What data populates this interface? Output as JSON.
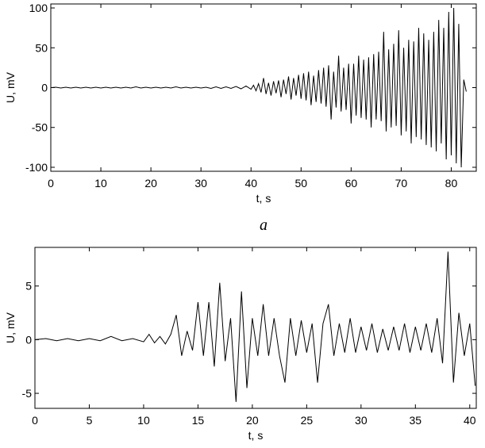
{
  "chart_data": [
    {
      "type": "line",
      "xlabel": "t, s",
      "ylabel": "U, mV",
      "caption": "a",
      "color": "#000000",
      "xlim": [
        0,
        85
      ],
      "xticks": [
        0,
        10,
        20,
        30,
        40,
        50,
        60,
        70,
        80
      ],
      "ylim": [
        -105,
        105
      ],
      "yticks": [
        -100,
        -50,
        0,
        50,
        100
      ],
      "x": [
        0,
        1,
        2,
        3,
        4,
        5,
        6,
        7,
        8,
        9,
        10,
        11,
        12,
        13,
        14,
        15,
        16,
        17,
        18,
        19,
        20,
        21,
        22,
        23,
        24,
        25,
        26,
        27,
        28,
        29,
        30,
        31,
        32,
        33,
        34,
        35,
        36,
        37,
        38,
        39,
        40,
        40.5,
        41,
        41.5,
        42,
        42.5,
        43,
        43.5,
        44,
        44.5,
        45,
        45.5,
        46,
        46.5,
        47,
        47.5,
        48,
        48.5,
        49,
        49.5,
        50,
        50.5,
        51,
        51.5,
        52,
        52.5,
        53,
        53.5,
        54,
        54.5,
        55,
        55.5,
        56,
        56.5,
        57,
        57.5,
        58,
        58.5,
        59,
        59.5,
        60,
        60.5,
        61,
        61.5,
        62,
        62.5,
        63,
        63.5,
        64,
        64.5,
        65,
        65.5,
        66,
        66.5,
        67,
        67.5,
        68,
        68.5,
        69,
        69.5,
        70,
        70.5,
        71,
        71.5,
        72,
        72.5,
        73,
        73.5,
        74,
        74.5,
        75,
        75.5,
        76,
        76.5,
        77,
        77.5,
        78,
        78.5,
        79,
        79.5,
        80,
        80.5,
        81,
        81.5,
        82,
        82.5,
        83
      ],
      "values": [
        0,
        0.5,
        -0.5,
        0.5,
        -0.5,
        0.5,
        -0.5,
        0.5,
        -0.5,
        0.5,
        -0.5,
        0.5,
        -0.5,
        0.5,
        -0.5,
        0.5,
        -0.5,
        1,
        -0.5,
        0.5,
        -0.5,
        0.5,
        -0.5,
        0.5,
        -0.5,
        1,
        -0.5,
        0.5,
        -0.5,
        0.5,
        -0.5,
        0.5,
        -1,
        1,
        -1,
        1,
        -1,
        1.5,
        -1.5,
        2,
        -2,
        3,
        -4,
        5,
        -6,
        12,
        -8,
        6,
        -10,
        8,
        -7,
        9,
        -12,
        10,
        -8,
        14,
        -15,
        12,
        -10,
        16,
        -14,
        18,
        -16,
        20,
        -22,
        15,
        -18,
        22,
        -20,
        25,
        -24,
        28,
        -40,
        20,
        -25,
        40,
        -30,
        25,
        -28,
        30,
        -45,
        30,
        -35,
        40,
        -38,
        35,
        -40,
        38,
        -50,
        42,
        -40,
        45,
        -42,
        70,
        -55,
        48,
        -50,
        55,
        -48,
        72,
        -60,
        50,
        -55,
        60,
        -70,
        58,
        -62,
        75,
        -65,
        68,
        -72,
        60,
        -75,
        70,
        -80,
        85,
        -70,
        75,
        -90,
        95,
        -85,
        100,
        -95,
        80,
        -100,
        10,
        -5
      ]
    },
    {
      "type": "line",
      "xlabel": "t, s",
      "ylabel": "U, mV",
      "color": "#000000",
      "xlim": [
        0,
        40.6
      ],
      "xticks": [
        0,
        5,
        10,
        15,
        20,
        25,
        30,
        35,
        40
      ],
      "ylim": [
        -6.4,
        8.6
      ],
      "yticks": [
        -5,
        0,
        5
      ],
      "x": [
        0,
        1,
        2,
        3,
        4,
        5,
        6,
        7,
        8,
        9,
        10,
        10.5,
        11,
        11.5,
        12,
        12.5,
        13,
        13.5,
        14,
        14.5,
        15,
        15.5,
        16,
        16.5,
        17,
        17.5,
        18,
        18.5,
        19,
        19.5,
        20,
        20.5,
        21,
        21.5,
        22,
        22.5,
        23,
        23.5,
        24,
        24.5,
        25,
        25.5,
        26,
        26.5,
        27,
        27.5,
        28,
        28.5,
        29,
        29.5,
        30,
        30.5,
        31,
        31.5,
        32,
        32.5,
        33,
        33.5,
        34,
        34.5,
        35,
        35.5,
        36,
        36.5,
        37,
        37.5,
        38,
        38.5,
        39,
        39.5,
        40,
        40.5
      ],
      "values": [
        0,
        0.1,
        -0.1,
        0.1,
        -0.1,
        0.1,
        -0.1,
        0.3,
        -0.1,
        0.1,
        -0.2,
        0.5,
        -0.3,
        0.3,
        -0.4,
        0.5,
        2.3,
        -1.5,
        0.8,
        -1,
        3.5,
        -1.5,
        3.5,
        -2.5,
        5.3,
        -2,
        2,
        -5.8,
        4.5,
        -4.5,
        2,
        -1.5,
        3.3,
        -1.5,
        2,
        -1.5,
        -4,
        2,
        -1.5,
        1.8,
        -1.2,
        1.5,
        -4,
        1.5,
        3.3,
        -1.5,
        1.5,
        -1.2,
        2,
        -1.2,
        1.2,
        -1,
        1.5,
        -1.2,
        1,
        -1,
        1.2,
        -1,
        1.5,
        -1.2,
        1.2,
        -1,
        1.5,
        -1.2,
        2,
        -2.2,
        8.2,
        -4,
        2.5,
        -1.5,
        1.5,
        -4.3
      ]
    }
  ]
}
